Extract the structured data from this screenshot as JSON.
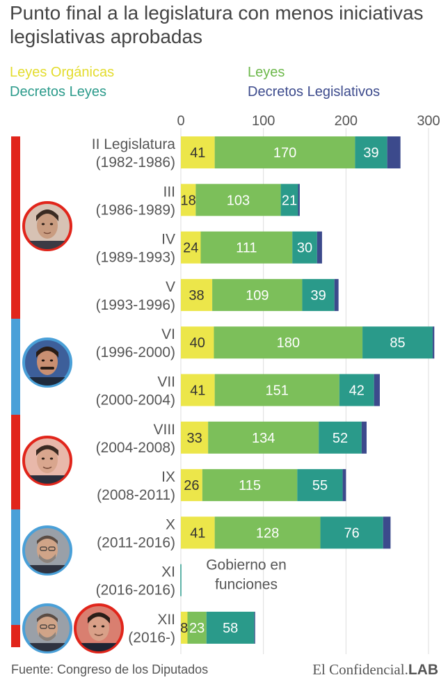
{
  "title": "Punto final a la legislatura con menos iniciativas legislativas aprobadas",
  "colors": {
    "organicas": "#ece64a",
    "leyes": "#7cbf5a",
    "decretos_leyes": "#2a9a8a",
    "decretos_legislativos": "#3c4a8c",
    "psoe": "#e1251b",
    "pp": "#4aa0d8"
  },
  "legend": {
    "organicas": "Leyes Orgánicas",
    "leyes": "Leyes",
    "decretos_leyes": "Decretos Leyes",
    "decretos_legislativos": "Decretos Legislativos"
  },
  "chart_data": {
    "type": "bar",
    "orientation": "horizontal",
    "stacked": true,
    "title": "Punto final a la legislatura con menos iniciativas legislativas aprobadas",
    "xlim": [
      0,
      300
    ],
    "xticks": [
      "0",
      "100",
      "200",
      "300"
    ],
    "grid": true,
    "legend_position": "top",
    "categories": [
      [
        "II Legislatura",
        "(1982-1986)"
      ],
      [
        "III",
        "(1986-1989)"
      ],
      [
        "IV",
        "(1989-1993)"
      ],
      [
        "V",
        "(1993-1996)"
      ],
      [
        "VI",
        "(1996-2000)"
      ],
      [
        "VII",
        "(2000-2004)"
      ],
      [
        "VIII",
        "(2004-2008)"
      ],
      [
        "IX",
        "(2008-2011)"
      ],
      [
        "X",
        "(2011-2016)"
      ],
      [
        "XI",
        "(2016-2016)"
      ],
      [
        "XII",
        "(2016-)"
      ]
    ],
    "series": [
      {
        "name": "Leyes Orgánicas",
        "values": [
          41,
          18,
          24,
          38,
          40,
          41,
          33,
          26,
          41,
          0,
          8
        ]
      },
      {
        "name": "Leyes",
        "values": [
          170,
          103,
          111,
          109,
          180,
          151,
          134,
          115,
          128,
          0,
          23
        ]
      },
      {
        "name": "Decretos Leyes",
        "values": [
          39,
          21,
          30,
          39,
          85,
          42,
          52,
          55,
          76,
          0,
          58
        ]
      },
      {
        "name": "Decretos Legislativos",
        "values": [
          16,
          2,
          6,
          5,
          2,
          7,
          6,
          4,
          9,
          0,
          1
        ]
      }
    ],
    "annotation": [
      "Gobierno en",
      "funciones"
    ]
  },
  "footer": {
    "source": "Fuente: Congreso de los Diputados",
    "brand": "El Confidencial.",
    "brand_lab": "LAB"
  }
}
